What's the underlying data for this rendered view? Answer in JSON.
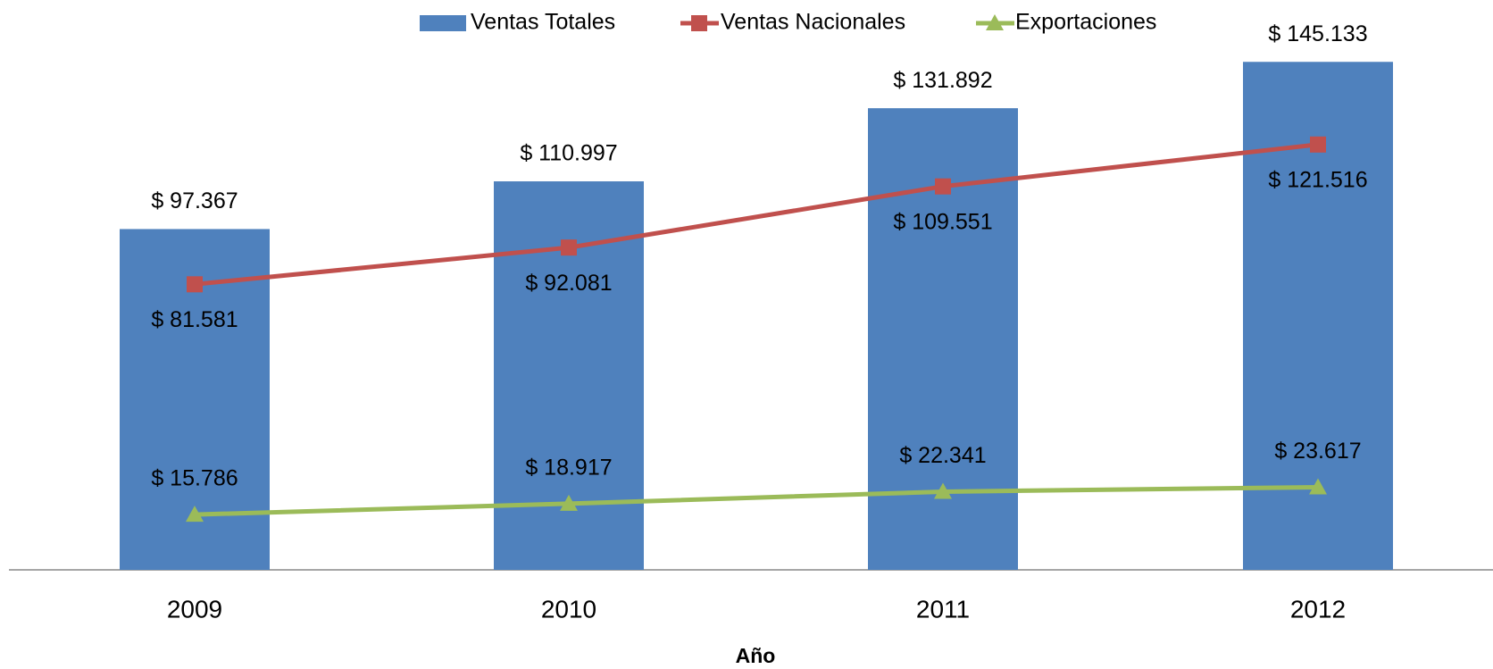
{
  "chart_data": {
    "type": "bar-line",
    "x_label": "Año",
    "categories": [
      "2009",
      "2010",
      "2011",
      "2012"
    ],
    "series": [
      {
        "name": "Ventas Totales",
        "type": "bar",
        "color": "#4f81bd",
        "values": [
          97367,
          110997,
          131892,
          145133
        ],
        "value_labels": [
          "$ 97.367",
          "$ 110.997",
          "$ 131.892",
          "$ 145.133"
        ]
      },
      {
        "name": "Ventas Nacionales",
        "type": "line",
        "marker": "square",
        "color": "#c0504d",
        "values": [
          81581,
          92081,
          109551,
          121516
        ],
        "value_labels": [
          "$ 81.581",
          "$ 92.081",
          "$ 109.551",
          "$ 121.516"
        ]
      },
      {
        "name": "Exportaciones",
        "type": "line",
        "marker": "triangle",
        "color": "#9bbb59",
        "values": [
          15786,
          18917,
          22341,
          23617
        ],
        "value_labels": [
          "$ 15.786",
          "$ 18.917",
          "$ 22.341",
          "$ 23.617"
        ]
      }
    ],
    "ylim": [
      0,
      160000
    ],
    "legend": "top"
  }
}
